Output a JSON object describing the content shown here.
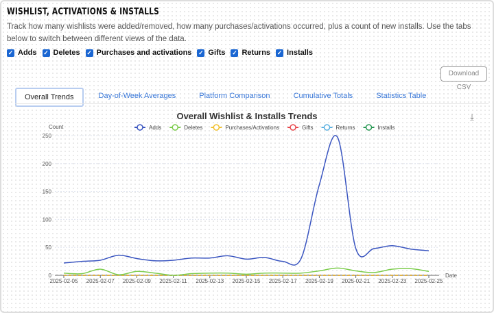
{
  "header": {
    "title": "WISHLIST, ACTIVATIONS & INSTALLS",
    "description": "Track how many wishlists were added/removed, how many purchases/activations occurred, plus a count of new installs. Use the tabs below to switch between different views of the data."
  },
  "filters": [
    {
      "label": "Adds",
      "checked": true
    },
    {
      "label": "Deletes",
      "checked": true
    },
    {
      "label": "Purchases and activations",
      "checked": true
    },
    {
      "label": "Gifts",
      "checked": true
    },
    {
      "label": "Returns",
      "checked": true
    },
    {
      "label": "Installs",
      "checked": true
    }
  ],
  "download_label": "Download CSV",
  "tabs": [
    {
      "label": "Overall Trends",
      "active": true
    },
    {
      "label": "Day-of-Week Averages"
    },
    {
      "label": "Platform Comparison"
    },
    {
      "label": "Cumulative Totals"
    },
    {
      "label": "Statistics Table"
    }
  ],
  "chart_data": {
    "type": "line",
    "title": "Overall Wishlist & Installs Trends",
    "xlabel": "Date",
    "ylabel": "Count",
    "ylim": [
      0,
      250
    ],
    "yticks": [
      0,
      50,
      100,
      150,
      200,
      250
    ],
    "xticks": [
      "2025-02-05",
      "2025-02-07",
      "2025-02-09",
      "2025-02-11",
      "2025-02-13",
      "2025-02-15",
      "2025-02-17",
      "2025-02-19",
      "2025-02-21",
      "2025-02-23",
      "2025-02-25"
    ],
    "x": [
      "2025-02-05",
      "2025-02-06",
      "2025-02-07",
      "2025-02-08",
      "2025-02-09",
      "2025-02-10",
      "2025-02-11",
      "2025-02-12",
      "2025-02-13",
      "2025-02-14",
      "2025-02-15",
      "2025-02-16",
      "2025-02-17",
      "2025-02-18",
      "2025-02-19",
      "2025-02-20",
      "2025-02-21",
      "2025-02-22",
      "2025-02-23",
      "2025-02-24",
      "2025-02-25"
    ],
    "grid": true,
    "legend": "top",
    "series": [
      {
        "name": "Adds",
        "color": "#3a55c0",
        "values": [
          22,
          25,
          27,
          36,
          30,
          26,
          27,
          31,
          31,
          35,
          29,
          32,
          25,
          30,
          162,
          247,
          48,
          48,
          53,
          47,
          44
        ]
      },
      {
        "name": "Deletes",
        "color": "#7ccc4c",
        "values": [
          4,
          3,
          11,
          1,
          7,
          4,
          0,
          3,
          4,
          4,
          2,
          4,
          4,
          4,
          8,
          13,
          8,
          5,
          11,
          12,
          7
        ]
      },
      {
        "name": "Purchases/Activations",
        "color": "#f2c12e",
        "values": [
          0,
          0,
          0,
          0,
          0,
          0,
          0,
          0,
          0,
          0,
          0,
          0,
          0,
          0,
          0,
          0,
          0,
          0,
          0,
          0,
          0
        ]
      },
      {
        "name": "Gifts",
        "color": "#e8474c",
        "values": [
          0,
          0,
          0,
          0,
          0,
          0,
          0,
          0,
          0,
          0,
          0,
          0,
          0,
          0,
          0,
          0,
          0,
          0,
          0,
          0,
          0
        ]
      },
      {
        "name": "Returns",
        "color": "#5ab0e0",
        "values": [
          0,
          0,
          0,
          0,
          0,
          0,
          0,
          0,
          0,
          0,
          0,
          0,
          0,
          0,
          0,
          0,
          0,
          0,
          0,
          0,
          0
        ]
      },
      {
        "name": "Installs",
        "color": "#2a9a55",
        "values": [
          0,
          0,
          0,
          0,
          0,
          0,
          0,
          0,
          0,
          0,
          0,
          0,
          0,
          0,
          0,
          0,
          0,
          0,
          0,
          0,
          0
        ]
      }
    ]
  }
}
